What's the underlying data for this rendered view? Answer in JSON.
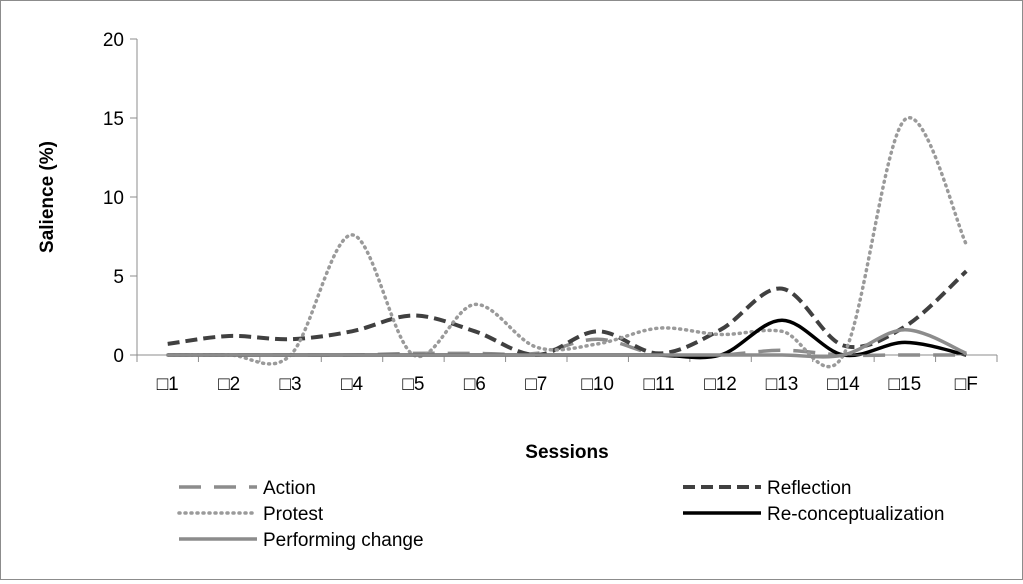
{
  "chart_data": {
    "type": "line",
    "title": "",
    "xlabel": "Sessions",
    "ylabel": "Salience (%)",
    "ylim": [
      0,
      20
    ],
    "yticks": [
      0,
      5,
      10,
      15,
      20
    ],
    "grid": false,
    "legend_position": "bottom",
    "categories": [
      "□1",
      "□2",
      "□3",
      "□4",
      "□5",
      "□6",
      "□7",
      "□10",
      "□11",
      "□12",
      "□13",
      "□14",
      "□15",
      "□F"
    ],
    "series": [
      {
        "name": "Action",
        "color": "#8c8c8c",
        "dash": "long-dash",
        "values": [
          0,
          0,
          0,
          0,
          0.1,
          0.1,
          0.1,
          1.0,
          0,
          0,
          0.3,
          0,
          0,
          0
        ]
      },
      {
        "name": "Reflection",
        "color": "#404040",
        "dash": "dash",
        "values": [
          0.7,
          1.2,
          1.0,
          1.5,
          2.5,
          1.5,
          0,
          1.5,
          0.1,
          1.6,
          4.2,
          0.6,
          1.8,
          5.3
        ]
      },
      {
        "name": "Protest",
        "color": "#9a9a9a",
        "dash": "dot",
        "values": [
          0,
          0,
          0,
          7.6,
          0,
          3.2,
          0.5,
          0.7,
          1.7,
          1.3,
          1.5,
          0,
          14.9,
          7.0
        ]
      },
      {
        "name": "Re-conceptualization",
        "color": "#000000",
        "dash": "solid",
        "values": [
          0,
          0,
          0,
          0,
          0,
          0,
          0,
          0,
          0,
          0,
          2.2,
          0,
          0.8,
          0
        ]
      },
      {
        "name": "Performing change",
        "color": "#8c8c8c",
        "dash": "solid",
        "values": [
          0,
          0,
          0,
          0,
          0,
          0,
          0,
          0,
          0,
          0,
          0,
          0,
          1.6,
          0.1
        ]
      }
    ]
  }
}
